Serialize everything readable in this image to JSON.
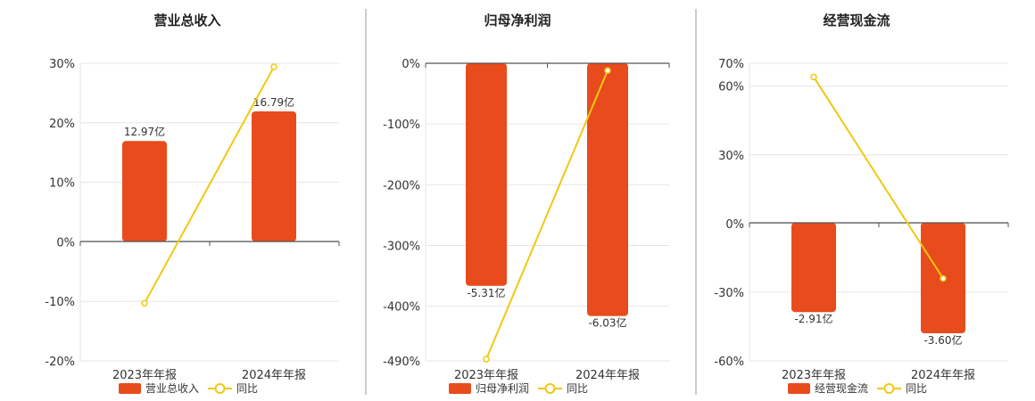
{
  "colors": {
    "bar": "#E84B1C",
    "line": "#F2C811",
    "divider": "#999999",
    "axis": "#555555",
    "grid": "#e3e6ee"
  },
  "legend_line_label": "同比",
  "chart_data": [
    {
      "type": "bar",
      "title": "营业总收入",
      "categories": [
        "2023年年报",
        "2024年年报"
      ],
      "series": [
        {
          "name": "营业总收入",
          "type": "bar",
          "values": [
            12.97,
            16.79
          ],
          "labels": [
            "12.97亿",
            "16.79亿"
          ]
        },
        {
          "name": "同比",
          "type": "line",
          "values": [
            -10.3,
            29.4
          ]
        }
      ],
      "yticks": [
        30,
        20,
        10,
        0,
        -10,
        -20
      ],
      "ytick_labels": [
        "30%",
        "20%",
        "10%",
        "0%",
        "-10%",
        "-20%"
      ],
      "ylim": [
        -20,
        30
      ],
      "bar_max": 23.0
    },
    {
      "type": "bar",
      "title": "归母净利润",
      "categories": [
        "2023年年报",
        "2024年年报"
      ],
      "series": [
        {
          "name": "归母净利润",
          "type": "bar",
          "values": [
            -5.31,
            -6.03
          ],
          "labels": [
            "-5.31亿",
            "-6.03亿"
          ]
        },
        {
          "name": "同比",
          "type": "line",
          "values": [
            -487,
            -12
          ]
        }
      ],
      "yticks": [
        0,
        -100,
        -200,
        -300,
        -400,
        -490
      ],
      "ytick_labels": [
        "0%",
        "-100%",
        "-200%",
        "-300%",
        "-400%",
        "-490%"
      ],
      "ylim": [
        -490,
        0
      ],
      "bar_max": 7.1
    },
    {
      "type": "bar",
      "title": "经营现金流",
      "categories": [
        "2023年年报",
        "2024年年报"
      ],
      "series": [
        {
          "name": "经营现金流",
          "type": "bar",
          "values": [
            -2.91,
            -3.6
          ],
          "labels": [
            "-2.91亿",
            "-3.60亿"
          ]
        },
        {
          "name": "同比",
          "type": "line",
          "values": [
            64,
            -24
          ]
        }
      ],
      "yticks": [
        70,
        60,
        30,
        0,
        -30,
        -60
      ],
      "ytick_labels": [
        "70%",
        "60%",
        "30%",
        "0%",
        "-30%",
        "-60%"
      ],
      "ylim": [
        -60,
        70
      ],
      "bar_max": 4.5
    }
  ]
}
